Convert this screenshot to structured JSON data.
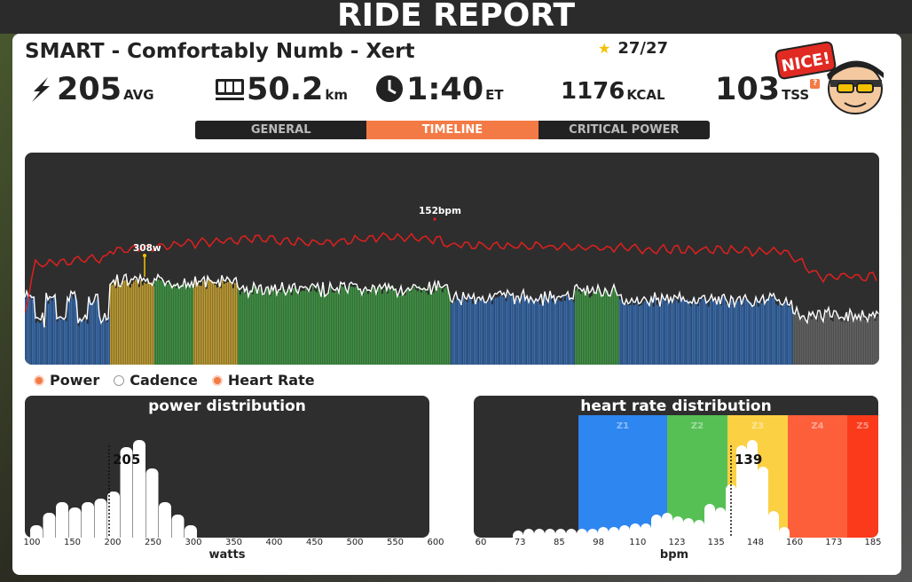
{
  "title": "RIDE REPORT",
  "workout": {
    "name": "SMART - Comfortably Numb - Xert",
    "stars": "27/27"
  },
  "stats": {
    "power": {
      "value": "205",
      "unit": "AVG"
    },
    "distance": {
      "value": "50.2",
      "unit": "km"
    },
    "time": {
      "value": "1:40",
      "unit": "ET"
    },
    "calories": {
      "value": "1176",
      "unit": "KCAL"
    },
    "tss": {
      "value": "103",
      "unit": "TSS",
      "badge": "?"
    }
  },
  "badge": {
    "text": "NICE!"
  },
  "tabs": [
    {
      "label": "GENERAL",
      "active": false
    },
    {
      "label": "TIMELINE",
      "active": true
    },
    {
      "label": "CRITICAL POWER",
      "active": false
    }
  ],
  "timeline": {
    "hr_peak_label": "152bpm",
    "power_peak_label": "308w"
  },
  "legend": [
    {
      "label": "Power",
      "color": "#f47a45"
    },
    {
      "label": "Cadence",
      "color": "#ffffff"
    },
    {
      "label": "Heart Rate",
      "color": "#f47a45"
    }
  ],
  "power_distribution": {
    "title": "power distribution",
    "avg_label": "205",
    "axis_label": "watts",
    "ticks": [
      "100",
      "150",
      "200",
      "250",
      "300",
      "350",
      "400",
      "450",
      "500",
      "550",
      "600"
    ]
  },
  "hr_distribution": {
    "title": "heart rate distribution",
    "avg_label": "139",
    "axis_label": "bpm",
    "ticks": [
      "60",
      "73",
      "85",
      "98",
      "110",
      "123",
      "135",
      "148",
      "160",
      "173",
      "185"
    ],
    "zones": [
      {
        "label": "Z1",
        "color": "#2e86f0"
      },
      {
        "label": "Z2",
        "color": "#56c055"
      },
      {
        "label": "Z3",
        "color": "#fbd042"
      },
      {
        "label": "Z4",
        "color": "#fd5f3b"
      },
      {
        "label": "Z5",
        "color": "#fa3a1a"
      }
    ]
  },
  "colors": {
    "accent": "#f47a45",
    "hr_line": "#e0201e",
    "zone_blue": "#3a72b8",
    "zone_green": "#3f9a44",
    "zone_yellow": "#c8a330",
    "zone_gray": "#666666"
  }
}
